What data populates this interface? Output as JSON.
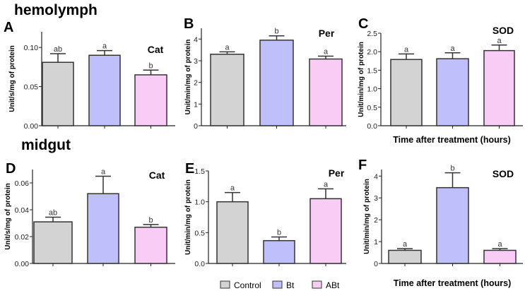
{
  "sections": {
    "top": "hemolymph",
    "bottom": "midgut"
  },
  "legend": [
    {
      "label": "Control",
      "color": "#d3d3d3"
    },
    {
      "label": "Bt",
      "color": "#bfc0fb"
    },
    {
      "label": "ABt",
      "color": "#f9ccf6"
    }
  ],
  "chart_data": [
    {
      "type": "bar",
      "panel": "A",
      "title": "Cat",
      "ylabel": "Unit/s/mg of protein",
      "xlabel": "",
      "ylim": [
        0,
        0.12
      ],
      "yticks": [
        "0.00",
        "0.05",
        "0.10"
      ],
      "tickvals": [
        0,
        0.05,
        0.1
      ],
      "categories": [
        "Control",
        "Bt",
        "ABt"
      ],
      "values": [
        0.081,
        0.09,
        0.065
      ],
      "errors": [
        0.011,
        0.006,
        0.006
      ],
      "letters": [
        "ab",
        "a",
        "b"
      ]
    },
    {
      "type": "bar",
      "panel": "B",
      "title": "Per",
      "ylabel": "Unit/min/mg of protein",
      "xlabel": "",
      "ylim": [
        0,
        4.5
      ],
      "yticks": [
        "0",
        "1",
        "2",
        "3",
        "4"
      ],
      "tickvals": [
        0,
        1,
        2,
        3,
        4
      ],
      "categories": [
        "Control",
        "Bt",
        "ABt"
      ],
      "values": [
        3.3,
        3.95,
        3.08
      ],
      "errors": [
        0.11,
        0.2,
        0.13
      ],
      "letters": [
        "a",
        "b",
        "a"
      ]
    },
    {
      "type": "bar",
      "panel": "C",
      "title": "SOD",
      "ylabel": "Unit/min/mg of protein",
      "xlabel": "Time after treatment (hours)",
      "ylim": [
        0,
        2.5
      ],
      "yticks": [
        "0.0",
        "0.5",
        "1.0",
        "1.5",
        "2.0",
        "2.5"
      ],
      "tickvals": [
        0,
        0.5,
        1,
        1.5,
        2,
        2.5
      ],
      "categories": [
        "Control",
        "Bt",
        "ABt"
      ],
      "values": [
        1.79,
        1.81,
        2.03
      ],
      "errors": [
        0.15,
        0.16,
        0.15
      ],
      "letters": [
        "a",
        "a",
        "a"
      ]
    },
    {
      "type": "bar",
      "panel": "D",
      "title": "Cat",
      "ylabel": "Unit/s/mg of protein",
      "xlabel": "",
      "ylim": [
        0,
        0.07
      ],
      "yticks": [
        "0.00",
        "0.02",
        "0.04",
        "0.06"
      ],
      "tickvals": [
        0,
        0.02,
        0.04,
        0.06
      ],
      "categories": [
        "Control",
        "Bt",
        "ABt"
      ],
      "values": [
        0.031,
        0.052,
        0.027
      ],
      "errors": [
        0.0035,
        0.013,
        0.002
      ],
      "letters": [
        "ab",
        "a",
        "b"
      ]
    },
    {
      "type": "bar",
      "panel": "E",
      "title": "Per",
      "ylabel": "Unit/min/mg of protein",
      "xlabel": "",
      "ylim": [
        0,
        1.5
      ],
      "yticks": [
        "0.0",
        "0.5",
        "1.0",
        "1.5"
      ],
      "tickvals": [
        0,
        0.5,
        1,
        1.5
      ],
      "categories": [
        "Control",
        "Bt",
        "ABt"
      ],
      "values": [
        1.0,
        0.37,
        1.05
      ],
      "errors": [
        0.15,
        0.06,
        0.16
      ],
      "letters": [
        "a",
        "b",
        "a"
      ]
    },
    {
      "type": "bar",
      "panel": "F",
      "title": "SOD",
      "ylabel": "Unit/min/mg of protein",
      "xlabel": "Time after treatment (hours)",
      "ylim": [
        0,
        4.3
      ],
      "yticks": [
        "0",
        "1",
        "2",
        "3",
        "4"
      ],
      "tickvals": [
        0,
        1,
        2,
        3,
        4
      ],
      "categories": [
        "Control",
        "Bt",
        "ABt"
      ],
      "values": [
        0.6,
        3.47,
        0.6
      ],
      "errors": [
        0.08,
        0.68,
        0.08
      ],
      "letters": [
        "a",
        "b",
        "a"
      ]
    }
  ]
}
